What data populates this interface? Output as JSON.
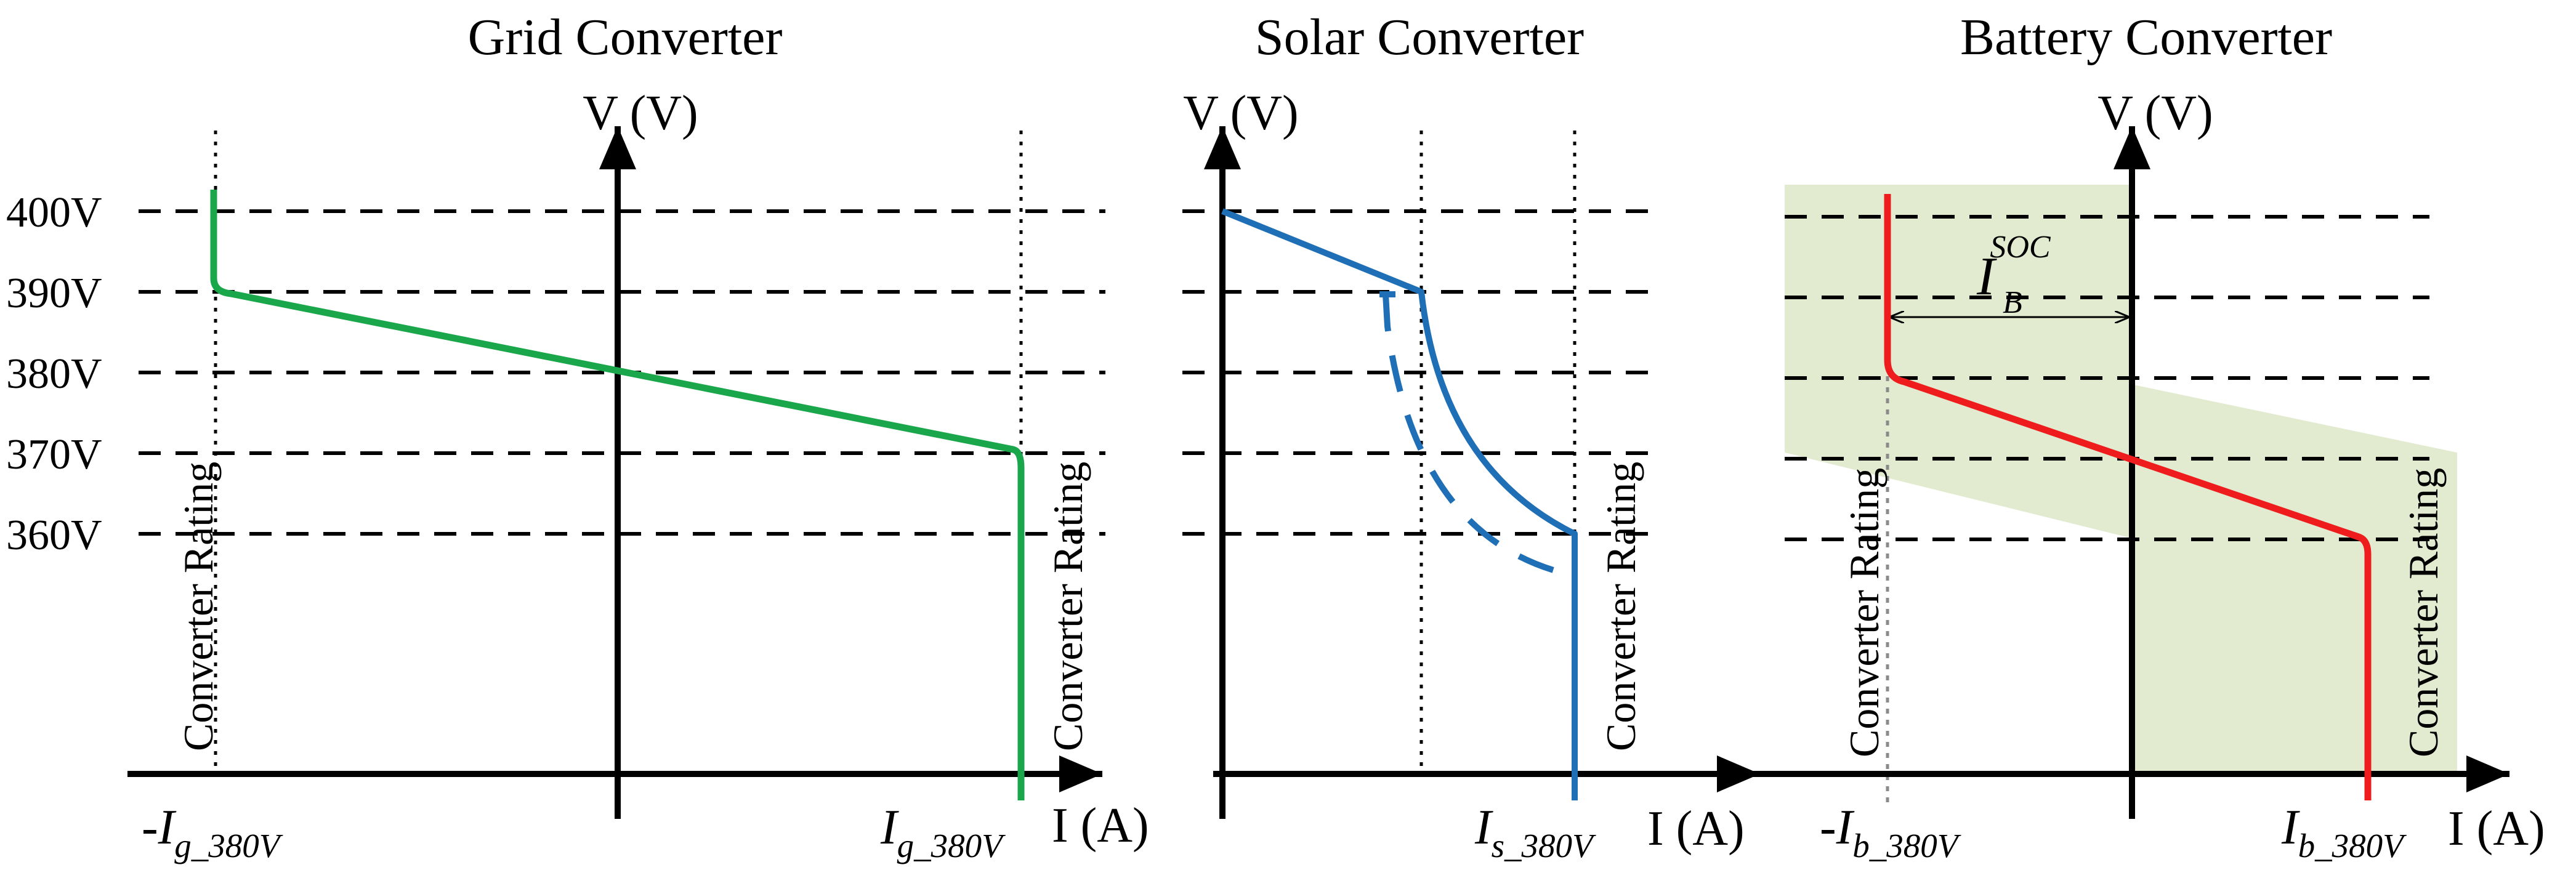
{
  "titles": {
    "grid": "Grid Converter",
    "solar": "Solar Converter",
    "battery": "Battery Converter"
  },
  "axes": {
    "v_label": "V (V)",
    "i_label": "I (A)"
  },
  "voltage_ticks": [
    "400V",
    "390V",
    "380V",
    "370V",
    "360V"
  ],
  "rating_label": "Converter Rating",
  "currents": {
    "grid_neg": {
      "prefix": "-",
      "main": "I",
      "sub": "g_380V"
    },
    "grid_pos": {
      "prefix": "",
      "main": "I",
      "sub": "g_380V"
    },
    "solar": {
      "prefix": "",
      "main": "I",
      "sub": "s_380V"
    },
    "battery_neg": {
      "prefix": "-",
      "main": "I",
      "sub": "b_380V"
    },
    "battery_pos": {
      "prefix": "",
      "main": "I",
      "sub": "b_380V"
    }
  },
  "soc_label": {
    "main": "I",
    "sub": "B",
    "sup": "SOC"
  },
  "colors": {
    "grid_curve": "#1aa64a",
    "solar_curve": "#1f6fb6",
    "battery_curve": "#ee1c1c",
    "soc_band": "#e2ebcf",
    "axis": "#000000"
  }
}
